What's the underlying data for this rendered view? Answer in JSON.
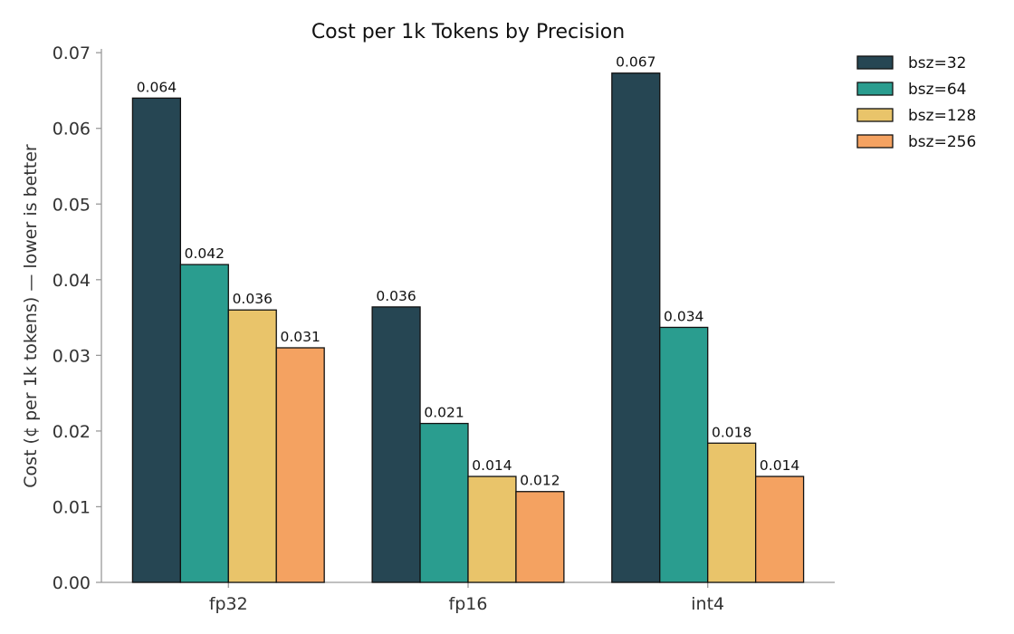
{
  "chart_data": {
    "type": "bar",
    "title": "Cost per 1k Tokens by Precision",
    "xlabel": "",
    "ylabel": "Cost (¢ per 1k tokens) — lower is better",
    "categories": [
      "fp32",
      "fp16",
      "int4"
    ],
    "series": [
      {
        "name": "bsz=32",
        "color": "#264653",
        "values": [
          0.064,
          0.0364,
          0.0673
        ],
        "labels": [
          "0.064",
          "0.036",
          "0.067"
        ]
      },
      {
        "name": "bsz=64",
        "color": "#2a9d8f",
        "values": [
          0.042,
          0.021,
          0.0337
        ],
        "labels": [
          "0.042",
          "0.021",
          "0.034"
        ]
      },
      {
        "name": "bsz=128",
        "color": "#e9c46a",
        "values": [
          0.036,
          0.014,
          0.0184
        ],
        "labels": [
          "0.036",
          "0.014",
          "0.018"
        ]
      },
      {
        "name": "bsz=256",
        "color": "#f4a261",
        "values": [
          0.031,
          0.012,
          0.014
        ],
        "labels": [
          "0.031",
          "0.012",
          "0.014"
        ]
      }
    ],
    "ylim": [
      0,
      0.0705
    ],
    "yticks": [
      "0.00",
      "0.01",
      "0.02",
      "0.03",
      "0.04",
      "0.05",
      "0.06",
      "0.07"
    ],
    "grid": false,
    "legend_position": "upper-right-outside"
  }
}
